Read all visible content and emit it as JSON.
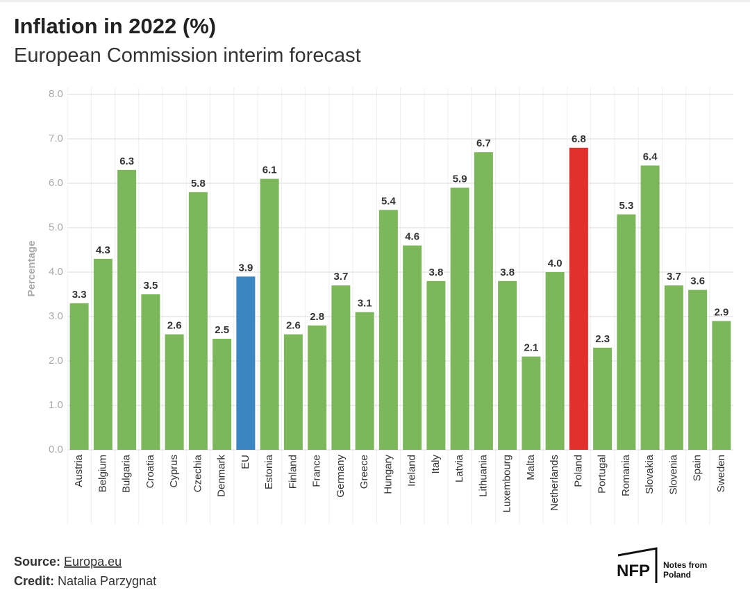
{
  "chart_data": {
    "type": "bar",
    "title": "Inflation in 2022 (%)",
    "subtitle": "European Commission interim forecast",
    "y_label": "Percentage",
    "categories": [
      "Austria",
      "Belgium",
      "Bulgaria",
      "Croatia",
      "Cyprus",
      "Czechia",
      "Denmark",
      "EU",
      "Estonia",
      "Finland",
      "France",
      "Germany",
      "Greece",
      "Hungary",
      "Ireland",
      "Italy",
      "Latvia",
      "Lithuania",
      "Luxembourg",
      "Malta",
      "Netherlands",
      "Poland",
      "Portugal",
      "Romania",
      "Slovakia",
      "Slovenia",
      "Spain",
      "Sweden"
    ],
    "values": [
      3.3,
      4.3,
      6.3,
      3.5,
      2.6,
      5.8,
      2.5,
      3.9,
      6.1,
      2.6,
      2.8,
      3.7,
      3.1,
      5.4,
      4.6,
      3.8,
      5.9,
      6.7,
      3.8,
      2.1,
      4.0,
      6.8,
      2.3,
      5.3,
      6.4,
      3.7,
      3.6,
      2.9
    ],
    "value_labels": [
      "3.3",
      "4.3",
      "6.3",
      "3.5",
      "2.6",
      "5.8",
      "2.5",
      "3.9",
      "6.1",
      "2.6",
      "2.8",
      "3.7",
      "3.1",
      "5.4",
      "4.6",
      "3.8",
      "5.9",
      "6.7",
      "3.8",
      "2.1",
      "4.0",
      "6.8",
      "2.3",
      "5.3",
      "6.4",
      "3.7",
      "3.6",
      "2.9"
    ],
    "colors": [
      "#7db75b",
      "#7db75b",
      "#7db75b",
      "#7db75b",
      "#7db75b",
      "#7db75b",
      "#7db75b",
      "#3a86c1",
      "#7db75b",
      "#7db75b",
      "#7db75b",
      "#7db75b",
      "#7db75b",
      "#7db75b",
      "#7db75b",
      "#7db75b",
      "#7db75b",
      "#7db75b",
      "#7db75b",
      "#7db75b",
      "#7db75b",
      "#e2302d",
      "#7db75b",
      "#7db75b",
      "#7db75b",
      "#7db75b",
      "#7db75b",
      "#7db75b"
    ],
    "ylim": [
      0,
      8
    ],
    "yticks": [
      {
        "value": 0,
        "label": "0.0"
      },
      {
        "value": 1,
        "label": "1.0"
      },
      {
        "value": 2,
        "label": "2.0"
      },
      {
        "value": 3,
        "label": "3.0"
      },
      {
        "value": 4,
        "label": "4.0"
      },
      {
        "value": 5,
        "label": "5.0"
      },
      {
        "value": 6,
        "label": "6.0"
      },
      {
        "value": 7,
        "label": "7.0"
      },
      {
        "value": 8,
        "label": "8.0"
      }
    ],
    "grid": true
  },
  "footer": {
    "source_label": "Source:",
    "source": "Europa.eu",
    "credit_label": "Credit:",
    "credit": "Natalia Parzygnat"
  },
  "logo": {
    "mark": "NFP",
    "line1": "Notes from",
    "line2": "Poland"
  }
}
